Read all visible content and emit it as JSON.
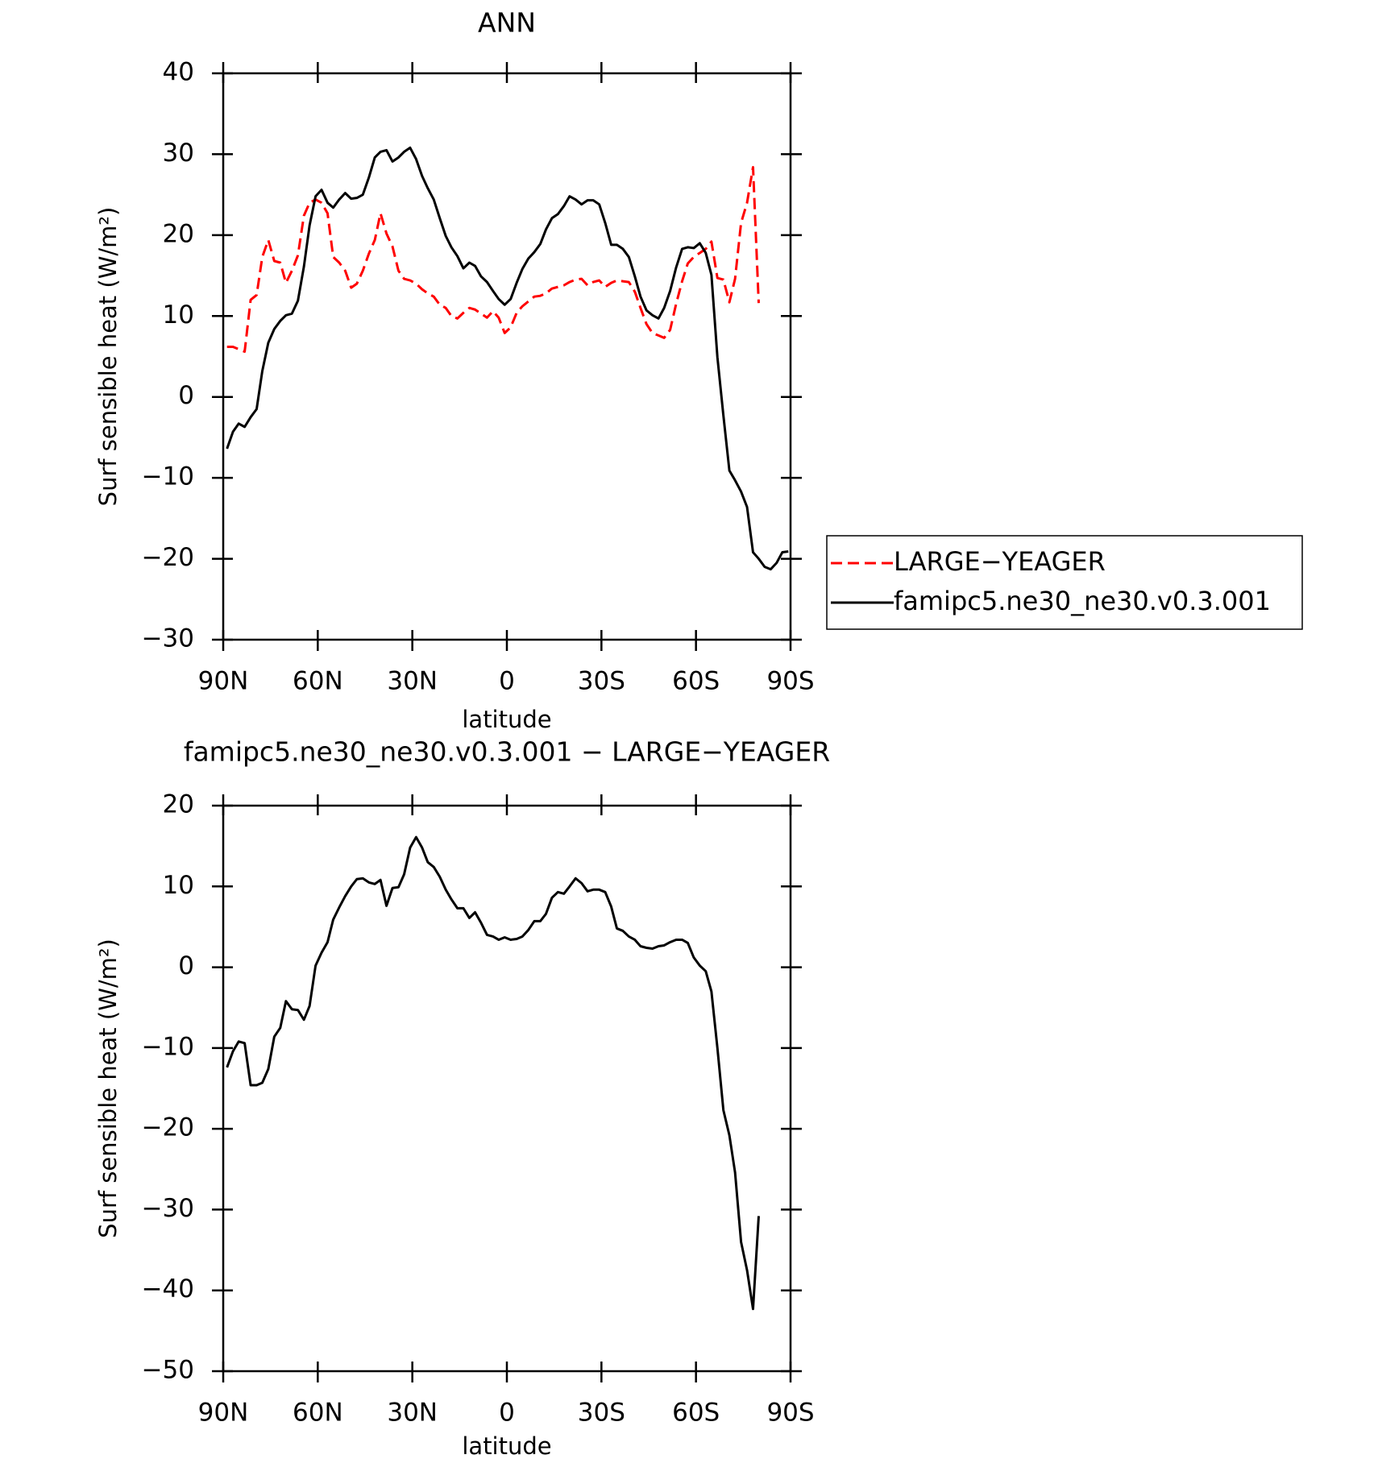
{
  "chart_data": [
    {
      "type": "line",
      "title": "ANN",
      "xlabel": "latitude",
      "ylabel": "Surf sensible heat (W/m²)",
      "x": [
        88.8,
        86.9,
        85.1,
        83.2,
        81.3,
        79.4,
        77.6,
        75.7,
        73.8,
        71.9,
        70.1,
        68.2,
        66.3,
        64.4,
        62.6,
        60.7,
        58.8,
        56.9,
        55.1,
        53.2,
        51.3,
        49.4,
        47.6,
        45.7,
        43.8,
        41.9,
        40.1,
        38.2,
        36.3,
        34.4,
        32.6,
        30.7,
        28.8,
        26.9,
        25.1,
        23.2,
        21.3,
        19.4,
        17.6,
        15.7,
        13.8,
        11.9,
        10.1,
        8.2,
        6.3,
        4.4,
        2.6,
        0.7,
        -1.2,
        -3.1,
        -4.9,
        -6.8,
        -8.7,
        -10.6,
        -12.4,
        -14.3,
        -16.2,
        -18.1,
        -19.9,
        -21.8,
        -23.7,
        -25.6,
        -27.4,
        -29.3,
        -31.2,
        -33.1,
        -34.9,
        -36.8,
        -38.7,
        -40.6,
        -42.4,
        -44.3,
        -46.2,
        -48.1,
        -49.9,
        -51.8,
        -53.7,
        -55.6,
        -57.4,
        -59.3,
        -61.2,
        -63.1,
        -64.9,
        -66.8,
        -68.7,
        -70.6,
        -72.4,
        -74.3,
        -76.2,
        -78.1,
        -79.9,
        -81.8,
        -83.7,
        -85.6,
        -87.4,
        -89.3
      ],
      "series": [
        {
          "name": "LARGE−YEAGER",
          "color": "#ff0000",
          "dash": true,
          "values": [
            6.2,
            6.2,
            5.9,
            5.6,
            12.0,
            12.6,
            17.3,
            19.4,
            16.8,
            16.6,
            14.1,
            15.6,
            17.5,
            22.4,
            24.0,
            24.4,
            24.0,
            22.7,
            17.3,
            16.6,
            15.6,
            13.5,
            14.0,
            15.6,
            17.7,
            19.4,
            22.7,
            20.2,
            18.6,
            15.6,
            14.6,
            14.4,
            14.0,
            13.3,
            12.8,
            12.4,
            11.4,
            11.0,
            10.0,
            9.7,
            10.4,
            11.0,
            10.8,
            10.3,
            9.8,
            10.6,
            9.8,
            7.9,
            8.6,
            10.4,
            11.2,
            11.8,
            12.4,
            12.5,
            12.8,
            13.4,
            13.6,
            13.8,
            14.2,
            14.5,
            14.6,
            13.8,
            14.2,
            14.4,
            13.6,
            14.1,
            14.4,
            14.3,
            14.2,
            13.0,
            11.0,
            9.0,
            7.9,
            7.6,
            7.3,
            8.3,
            11.5,
            14.3,
            16.5,
            17.3,
            17.8,
            18.3,
            19.2,
            14.7,
            14.5,
            11.7,
            14.6,
            21.5,
            24.0,
            28.4,
            11.6,
            null,
            null,
            null,
            null,
            null
          ]
        },
        {
          "name": "famipc5.ne30_ne30.v0.3.001",
          "color": "#000000",
          "dash": false,
          "values": [
            -6.4,
            -4.3,
            -3.3,
            -3.7,
            -2.5,
            -1.5,
            3.2,
            6.7,
            8.4,
            9.4,
            10.1,
            10.3,
            11.9,
            16.1,
            21.2,
            24.8,
            25.6,
            24.0,
            23.4,
            24.4,
            25.2,
            24.5,
            24.6,
            25.0,
            27.1,
            29.6,
            30.3,
            30.5,
            29.1,
            29.6,
            30.3,
            30.8,
            29.4,
            27.3,
            25.8,
            24.4,
            22.1,
            19.9,
            18.5,
            17.4,
            15.9,
            16.6,
            16.2,
            14.9,
            14.2,
            13.1,
            12.1,
            11.4,
            12.1,
            14.1,
            15.8,
            17.1,
            17.9,
            18.9,
            20.7,
            22.1,
            22.6,
            23.6,
            24.8,
            24.4,
            23.8,
            24.3,
            24.3,
            23.8,
            21.5,
            18.8,
            18.8,
            18.3,
            17.3,
            14.9,
            12.4,
            10.7,
            10.1,
            9.7,
            11.0,
            13.1,
            16.0,
            18.3,
            18.5,
            18.4,
            19.0,
            17.8,
            15.1,
            4.9,
            -2.3,
            -9.1,
            -10.3,
            -11.7,
            -13.6,
            -19.2,
            -20.0,
            -21.0,
            -21.3,
            -20.5,
            -19.2,
            -19.1
          ]
        }
      ],
      "xlim": [
        90,
        -90
      ],
      "xticks": [
        {
          "value": 90,
          "label": "90N"
        },
        {
          "value": 60,
          "label": "60N"
        },
        {
          "value": 30,
          "label": "30N"
        },
        0,
        {
          "value": -30,
          "label": "30S"
        },
        {
          "value": -60,
          "label": "60S"
        },
        {
          "value": -90,
          "label": "90S"
        }
      ],
      "ylim": [
        -30,
        40
      ],
      "yticks": [
        {
          "value": -30,
          "label": "−30"
        },
        {
          "value": -20,
          "label": "−20"
        },
        {
          "value": -10,
          "label": "−10"
        },
        0,
        10,
        20,
        30,
        40
      ],
      "legend": "right"
    },
    {
      "type": "line",
      "title": "famipc5.ne30_ne30.v0.3.001 − LARGE−YEAGER",
      "xlabel": "latitude",
      "ylabel": "Surf sensible heat (W/m²)",
      "x": [
        88.8,
        86.9,
        85.1,
        83.2,
        81.3,
        79.4,
        77.6,
        75.7,
        73.8,
        71.9,
        70.1,
        68.2,
        66.3,
        64.4,
        62.6,
        60.7,
        58.8,
        56.9,
        55.1,
        53.2,
        51.3,
        49.4,
        47.6,
        45.7,
        43.8,
        41.9,
        40.1,
        38.2,
        36.3,
        34.4,
        32.6,
        30.7,
        28.8,
        26.9,
        25.1,
        23.2,
        21.3,
        19.4,
        17.6,
        15.7,
        13.8,
        11.9,
        10.1,
        8.2,
        6.3,
        4.4,
        2.6,
        0.7,
        -1.2,
        -3.1,
        -4.9,
        -6.8,
        -8.7,
        -10.6,
        -12.4,
        -14.3,
        -16.2,
        -18.1,
        -19.9,
        -21.8,
        -23.7,
        -25.6,
        -27.4,
        -29.3,
        -31.2,
        -33.1,
        -34.9,
        -36.8,
        -38.7,
        -40.6,
        -42.4,
        -44.3,
        -46.2,
        -48.1,
        -49.9,
        -51.8,
        -53.7,
        -55.6,
        -57.4,
        -59.3,
        -61.2,
        -63.1,
        -64.9,
        -66.8,
        -68.7,
        -70.6,
        -72.4,
        -74.3,
        -76.2,
        -78.1,
        -79.9,
        -81.8,
        -83.7,
        -85.6,
        -87.4,
        -89.3
      ],
      "series": [
        {
          "color": "#000000",
          "dash": false,
          "values": [
            -12.4,
            -10.4,
            -9.2,
            -9.4,
            -14.6,
            -14.6,
            -14.3,
            -12.6,
            -8.6,
            -7.5,
            -4.2,
            -5.2,
            -5.3,
            -6.5,
            -4.8,
            0.2,
            1.8,
            3.1,
            5.9,
            7.4,
            8.8,
            10.0,
            10.9,
            11.0,
            10.5,
            10.3,
            10.8,
            7.6,
            9.8,
            9.9,
            11.5,
            14.8,
            16.1,
            14.8,
            13.0,
            12.4,
            11.2,
            9.6,
            8.4,
            7.3,
            7.3,
            6.1,
            6.8,
            5.5,
            4.0,
            3.8,
            3.4,
            3.7,
            3.4,
            3.5,
            3.8,
            4.6,
            5.7,
            5.7,
            6.6,
            8.6,
            9.3,
            9.1,
            10.0,
            11.0,
            10.4,
            9.4,
            9.6,
            9.6,
            9.3,
            7.5,
            4.8,
            4.5,
            3.8,
            3.4,
            2.6,
            2.4,
            2.3,
            2.6,
            2.7,
            3.1,
            3.4,
            3.4,
            3.0,
            1.2,
            0.2,
            -0.5,
            -3.0,
            -10.0,
            -17.7,
            -20.8,
            -25.4,
            -34.0,
            -37.5,
            -42.3,
            -30.8,
            null,
            null,
            null,
            null,
            null
          ]
        }
      ],
      "xlim": [
        90,
        -90
      ],
      "xticks": [
        {
          "value": 90,
          "label": "90N"
        },
        {
          "value": 60,
          "label": "60N"
        },
        {
          "value": 30,
          "label": "30N"
        },
        0,
        {
          "value": -30,
          "label": "30S"
        },
        {
          "value": -60,
          "label": "60S"
        },
        {
          "value": -90,
          "label": "90S"
        }
      ],
      "ylim": [
        -50,
        20
      ],
      "yticks": [
        {
          "value": -50,
          "label": "−50"
        },
        {
          "value": -40,
          "label": "−40"
        },
        {
          "value": -30,
          "label": "−30"
        },
        {
          "value": -20,
          "label": "−20"
        },
        {
          "value": -10,
          "label": "−10"
        },
        0,
        10,
        20
      ]
    }
  ]
}
